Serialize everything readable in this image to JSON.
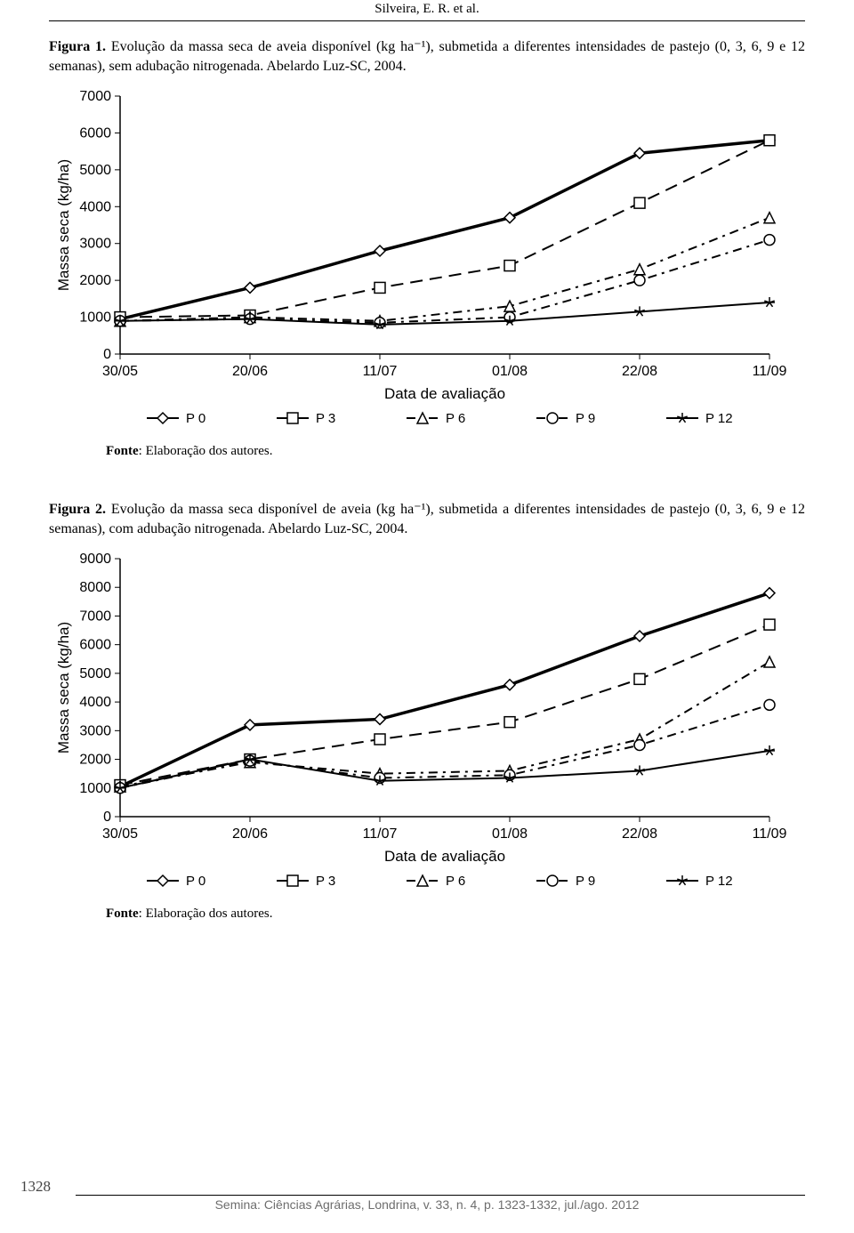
{
  "running_head": "Silveira, E. R. et al.",
  "figure1": {
    "label": "Figura 1.",
    "caption": "Evolução da massa seca de aveia disponível (kg ha⁻¹), submetida a diferentes intensidades de pastejo (0, 3, 6, 9 e 12 semanas), sem adubação nitrogenada. Abelardo Luz-SC, 2004.",
    "source_label": "Fonte",
    "source_text": ": Elaboração dos autores.",
    "chart": {
      "type": "line",
      "x_categories": [
        "30/05",
        "20/06",
        "11/07",
        "01/08",
        "22/08",
        "11/09"
      ],
      "x_label": "Data de avaliação",
      "y_label": "Massa seca (kg/ha)",
      "y_min": 0,
      "y_max": 7000,
      "y_step": 1000,
      "bg": "#ffffff",
      "axis_color": "#000000",
      "series": [
        {
          "name": "P 0",
          "marker": "diamond",
          "dash": "solid",
          "color": "#000000",
          "values": [
            950,
            1800,
            2800,
            3700,
            5450,
            5800
          ]
        },
        {
          "name": "P 3",
          "marker": "square",
          "dash": "long",
          "color": "#000000",
          "values": [
            1000,
            1050,
            1800,
            2400,
            4100,
            5800
          ]
        },
        {
          "name": "P 6",
          "marker": "triangle",
          "dash": "dashdot",
          "color": "#000000",
          "values": [
            900,
            1000,
            900,
            1300,
            2300,
            3700
          ]
        },
        {
          "name": "P 9",
          "marker": "circle",
          "dash": "dashdot",
          "color": "#000000",
          "values": [
            900,
            950,
            850,
            1000,
            2000,
            3100
          ]
        },
        {
          "name": "P 12",
          "marker": "star",
          "dash": "solid",
          "color": "#000000",
          "values": [
            900,
            950,
            800,
            900,
            1150,
            1400
          ]
        }
      ],
      "line_width_main": 3.5,
      "line_width_other": 2,
      "axis_fontsize": 16,
      "label_fontsize": 17
    }
  },
  "figure2": {
    "label": "Figura 2.",
    "caption": "Evolução da massa seca disponível de aveia (kg ha⁻¹), submetida a diferentes intensidades de pastejo (0, 3, 6, 9 e 12 semanas), com adubação nitrogenada. Abelardo Luz-SC, 2004.",
    "source_label": "Fonte",
    "source_text": ": Elaboração dos autores.",
    "chart": {
      "type": "line",
      "x_categories": [
        "30/05",
        "20/06",
        "11/07",
        "01/08",
        "22/08",
        "11/09"
      ],
      "x_label": "Data de avaliação",
      "y_label": "Massa seca (kg/ha)",
      "y_min": 0,
      "y_max": 9000,
      "y_step": 1000,
      "bg": "#ffffff",
      "axis_color": "#000000",
      "series": [
        {
          "name": "P 0",
          "marker": "diamond",
          "dash": "solid",
          "color": "#000000",
          "values": [
            1050,
            3200,
            3400,
            4600,
            6300,
            7800
          ]
        },
        {
          "name": "P 3",
          "marker": "square",
          "dash": "long",
          "color": "#000000",
          "values": [
            1100,
            2000,
            2700,
            3300,
            4800,
            6700
          ]
        },
        {
          "name": "P 6",
          "marker": "triangle",
          "dash": "dashdot",
          "color": "#000000",
          "values": [
            1050,
            1900,
            1500,
            1600,
            2700,
            5400
          ]
        },
        {
          "name": "P 9",
          "marker": "circle",
          "dash": "dashdot",
          "color": "#000000",
          "values": [
            1000,
            1950,
            1350,
            1450,
            2500,
            3900
          ]
        },
        {
          "name": "P 12",
          "marker": "star",
          "dash": "solid",
          "color": "#000000",
          "values": [
            1000,
            2000,
            1250,
            1350,
            1600,
            2300
          ]
        }
      ],
      "line_width_main": 3.5,
      "line_width_other": 2,
      "axis_fontsize": 16,
      "label_fontsize": 17
    }
  },
  "page_number": "1328",
  "footer": "Semina: Ciências Agrárias, Londrina, v. 33, n. 4, p. 1323-1332, jul./ago. 2012"
}
